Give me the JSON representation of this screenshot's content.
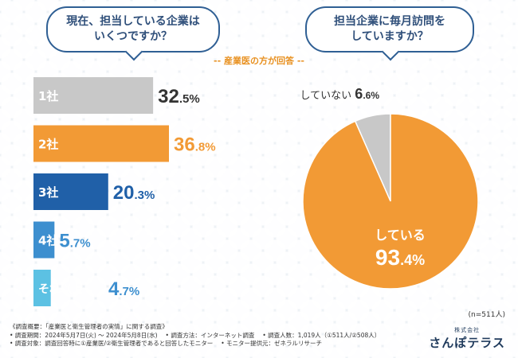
{
  "questions": {
    "left_line1": "現在、担当している企業は",
    "left_line2": "いくつですか？",
    "right_line1": "担当企業に毎月訪問を",
    "right_line2": "していますか？"
  },
  "subtitle": "-- 産業医の方が回答 --",
  "colors": {
    "gray": "#c8c8c8",
    "orange": "#f29a35",
    "navy": "#2060a8",
    "blue": "#3d8fcf",
    "light_blue": "#5cc1e3",
    "text_dark": "#333333",
    "pie_label": "#ffffff"
  },
  "chart_data": [
    {
      "type": "bar",
      "orientation": "horizontal",
      "title": "現在、担当している企業はいくつですか？",
      "categories": [
        "1社",
        "2社",
        "3社",
        "4社",
        "それ以上"
      ],
      "values": [
        32.5,
        36.8,
        20.3,
        5.7,
        4.7
      ],
      "value_int": [
        "32",
        "36",
        "20",
        "5",
        "4"
      ],
      "value_dec": [
        ".5%",
        ".8%",
        ".3%",
        ".7%",
        ".7%"
      ],
      "bar_colors": [
        "#c8c8c8",
        "#f29a35",
        "#2060a8",
        "#3d8fcf",
        "#5cc1e3"
      ],
      "value_colors": [
        "#333333",
        "#f29a35",
        "#2060a8",
        "#3d8fcf",
        "#3d8fcf"
      ],
      "unit": "%",
      "xlim": [
        0,
        36.8
      ]
    },
    {
      "type": "pie",
      "title": "担当企業に毎月訪問をしていますか？",
      "labels": [
        "していない",
        "している"
      ],
      "values": [
        6.6,
        93.4
      ],
      "value_int": [
        "6",
        "93"
      ],
      "value_dec": [
        ".6%",
        ".4%"
      ],
      "colors": [
        "#c8c8c8",
        "#f29a35"
      ],
      "unit": "%",
      "n_note": "(n=511人)"
    }
  ],
  "footer": {
    "line1": "《調査概要：「産業医と衛生管理者の実情」に関する調査》",
    "line2a": "• 調査期間：2024年5月7日(火) ～ 2024年5月8日(水)",
    "line2b": "• 調査方法：インターネット調査",
    "line2c": "• 調査人数：1,019人（①511人/②508人）",
    "line3a": "• 調査対象：調査回答時に①産業医/②衛生管理者であると回答したモニター",
    "line3b": "• モニター提供元：ゼネラルリサーチ"
  },
  "logo": {
    "small": "株式会社",
    "main": "さんぽテラス"
  }
}
